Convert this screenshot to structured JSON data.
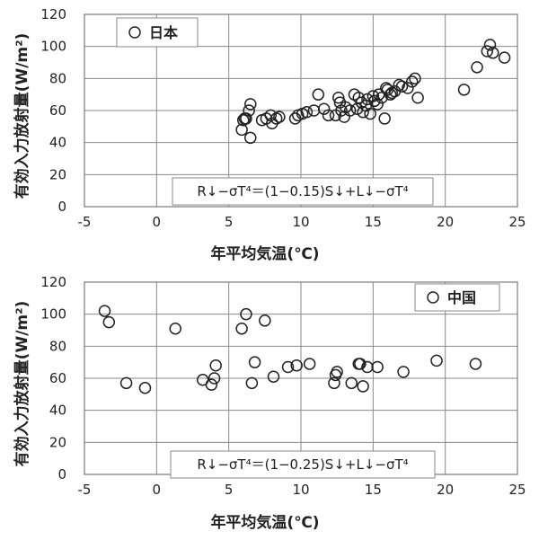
{
  "chart_data": [
    {
      "type": "scatter",
      "title": "",
      "legend_label": "日本",
      "legend_position": "top-left",
      "xlabel": "年平均気温(℃)",
      "ylabel": "有効入力放射量(W/m²)",
      "xlim": [
        -5,
        25
      ],
      "ylim": [
        0,
        120
      ],
      "xticks": [
        "-5",
        "0",
        "5",
        "10",
        "15",
        "20",
        "25"
      ],
      "yticks": [
        "0",
        "20",
        "40",
        "60",
        "80",
        "100",
        "120"
      ],
      "grid": true,
      "annotation": "R↓−σT⁴＝(1−0.15)S↓+L↓−σT⁴",
      "x": [
        -1.5,
        5.9,
        6.0,
        6.1,
        6.2,
        6.4,
        6.5,
        6.5,
        7.3,
        7.6,
        7.9,
        8.0,
        8.3,
        8.5,
        9.6,
        9.8,
        10.1,
        10.4,
        10.9,
        11.2,
        11.6,
        11.9,
        12.4,
        12.6,
        12.7,
        12.8,
        13.0,
        13.1,
        13.4,
        13.7,
        13.9,
        14.0,
        14.2,
        14.3,
        14.5,
        14.6,
        14.8,
        15.0,
        15.1,
        15.3,
        15.4,
        15.6,
        15.8,
        15.9,
        16.0,
        16.2,
        16.3,
        16.5,
        16.8,
        17.0,
        17.4,
        17.7,
        17.9,
        18.1,
        21.3,
        22.2,
        22.9,
        23.1,
        23.3,
        24.1
      ],
      "y": [
        108,
        48,
        54,
        55,
        55,
        60,
        43,
        64,
        54,
        55,
        57,
        52,
        55,
        56,
        55,
        57,
        58,
        59,
        60,
        70,
        61,
        57,
        57,
        68,
        65,
        60,
        56,
        62,
        60,
        70,
        61,
        68,
        65,
        59,
        63,
        67,
        58,
        69,
        66,
        64,
        70,
        68,
        55,
        74,
        73,
        70,
        71,
        72,
        76,
        75,
        74,
        78,
        80,
        68,
        73,
        87,
        97,
        101,
        96,
        93
      ]
    },
    {
      "type": "scatter",
      "title": "",
      "legend_label": "中国",
      "legend_position": "top-right",
      "xlabel": "年平均気温(℃)",
      "ylabel": "有効入力放射量(W/m²)",
      "xlim": [
        -5,
        25
      ],
      "ylim": [
        0,
        120
      ],
      "xticks": [
        "-5",
        "0",
        "5",
        "10",
        "15",
        "20",
        "25"
      ],
      "yticks": [
        "0",
        "20",
        "40",
        "60",
        "80",
        "100",
        "120"
      ],
      "grid": true,
      "annotation": "R↓−σT⁴＝(1−0.25)S↓+L↓−σT⁴",
      "x": [
        -3.6,
        -3.3,
        -2.1,
        -0.8,
        1.3,
        3.2,
        3.8,
        4.0,
        4.1,
        5.9,
        6.2,
        6.6,
        6.8,
        7.5,
        8.1,
        9.1,
        9.7,
        10.6,
        12.3,
        12.4,
        12.5,
        13.5,
        14.0,
        14.1,
        14.3,
        14.6,
        15.3,
        17.1,
        19.4,
        22.1
      ],
      "y": [
        102,
        95,
        57,
        54,
        91,
        59,
        56,
        60,
        68,
        91,
        100,
        57,
        70,
        96,
        61,
        67,
        68,
        69,
        57,
        62,
        64,
        57,
        69,
        69,
        55,
        67,
        67,
        64,
        71,
        69
      ]
    }
  ]
}
